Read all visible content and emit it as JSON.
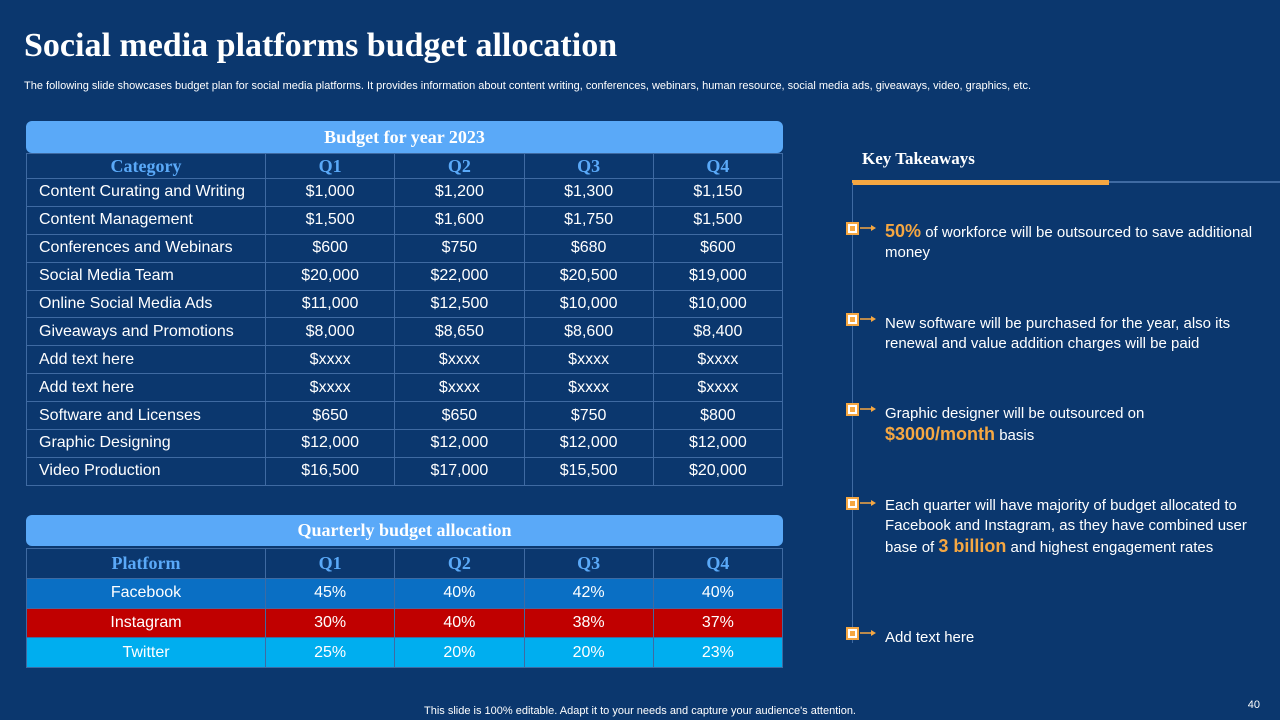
{
  "title": "Social media platforms budget allocation",
  "subtitle": "The following slide showcases budget plan for social media platforms. It provides information about content writing, conferences, webinars, human resource, social media ads, giveaways, video, graphics, etc.",
  "budget": {
    "banner": "Budget for year 2023",
    "headers": [
      "Category",
      "Q1",
      "Q2",
      "Q3",
      "Q4"
    ],
    "rows": [
      [
        "Content Curating and Writing",
        "$1,000",
        "$1,200",
        "$1,300",
        "$1,150"
      ],
      [
        "Content Management",
        "$1,500",
        "$1,600",
        "$1,750",
        "$1,500"
      ],
      [
        "Conferences and Webinars",
        "$600",
        "$750",
        "$680",
        "$600"
      ],
      [
        "Social Media Team",
        "$20,000",
        "$22,000",
        "$20,500",
        "$19,000"
      ],
      [
        "Online Social Media Ads",
        "$11,000",
        "$12,500",
        "$10,000",
        "$10,000"
      ],
      [
        "Giveaways and Promotions",
        "$8,000",
        "$8,650",
        "$8,600",
        "$8,400"
      ],
      [
        "Add text here",
        "$xxxx",
        "$xxxx",
        "$xxxx",
        "$xxxx"
      ],
      [
        "Add text here",
        "$xxxx",
        "$xxxx",
        "$xxxx",
        "$xxxx"
      ],
      [
        "Software and Licenses",
        "$650",
        "$650",
        "$750",
        "$800"
      ],
      [
        "Graphic Designing",
        "$12,000",
        "$12,000",
        "$12,000",
        "$12,000"
      ],
      [
        "Video Production",
        "$16,500",
        "$17,000",
        "$15,500",
        "$20,000"
      ]
    ]
  },
  "allocation": {
    "banner": "Quarterly budget allocation",
    "headers": [
      "Platform",
      "Q1",
      "Q2",
      "Q3",
      "Q4"
    ],
    "rows": [
      [
        "Facebook",
        "45%",
        "40%",
        "42%",
        "40%"
      ],
      [
        "Instagram",
        "30%",
        "40%",
        "38%",
        "37%"
      ],
      [
        "Twitter",
        "25%",
        "20%",
        "20%",
        "23%"
      ]
    ],
    "row_colors": [
      "#0a6fc4",
      "#c00000",
      "#00aeef"
    ]
  },
  "takeaways": {
    "title": "Key Takeaways",
    "items": [
      {
        "hl": "50%",
        "text": " of workforce will be outsourced to save additional money"
      },
      {
        "pre": "New software will be purchased for the year,  also its renewal  and value addition charges will be paid"
      },
      {
        "pre": "Graphic designer will be outsourced  on ",
        "hl": "$3000/month",
        "post": " basis"
      },
      {
        "pre": "Each quarter will have majority  of budget allocated to Facebook and Instagram,  as they have combined user base of ",
        "hl": "3 billion",
        "post": " and highest engagement rates"
      },
      {
        "pre": "Add text here"
      }
    ]
  },
  "footer": "This slide is 100% editable. Adapt it to your needs and capture your audience's attention.",
  "page_number": "40",
  "colors": {
    "background": "#0b376e",
    "accent": "#f5a742",
    "banner": "#5aa9f8"
  }
}
